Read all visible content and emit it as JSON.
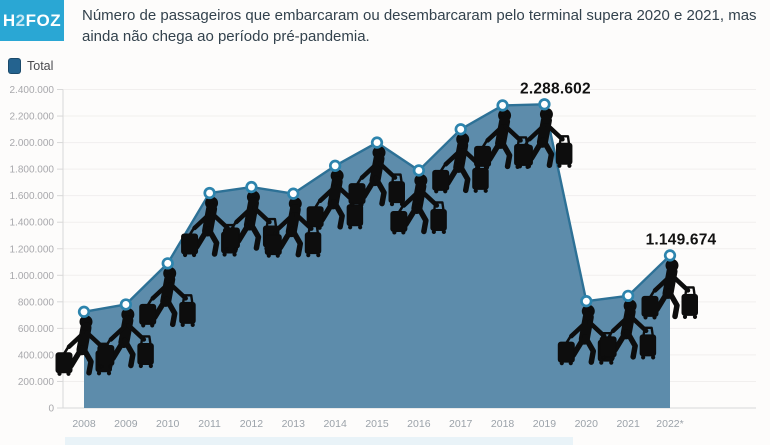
{
  "logo": {
    "part1": "H",
    "part2": "2",
    "part3": "FOZ",
    "bg_color": "#2aa7d4",
    "text_color": "#ffffff"
  },
  "header": {
    "title": "Número de passageiros que embarcaram ou desembarcaram pelo terminal supera 2020 e 2021, mas ainda não chega ao período pré-pandemia."
  },
  "legend": {
    "label": "Total",
    "color": "#24638f"
  },
  "chart_data": {
    "type": "area",
    "title": "Número de passageiros que embarcaram ou desembarcaram pelo terminal supera 2020 e 2021, mas ainda não chega ao período pré-pandemia.",
    "xlabel": "",
    "ylabel": "",
    "categories": [
      "2008",
      "2009",
      "2010",
      "2011",
      "2012",
      "2013",
      "2014",
      "2015",
      "2016",
      "2017",
      "2018",
      "2019",
      "2020",
      "2021",
      "2022*"
    ],
    "series": [
      {
        "name": "Total",
        "values": [
          725000,
          780000,
          1090000,
          1620000,
          1665000,
          1615000,
          1825000,
          2000000,
          1790000,
          2100000,
          2280000,
          2288602,
          805000,
          845000,
          1149674
        ]
      }
    ],
    "annotations": [
      {
        "category": "2019",
        "value": 2288602,
        "label": "2.288.602"
      },
      {
        "category": "2022*",
        "value": 1149674,
        "label": "1.149.674"
      }
    ],
    "ylim": [
      0,
      2400000
    ],
    "ytick_step": 200000,
    "ytick_labels": [
      "0",
      "200.000",
      "400.000",
      "600.000",
      "800.000",
      "1.000.000",
      "1.200.000",
      "1.400.000",
      "1.600.000",
      "1.800.000",
      "2.000.000",
      "2.200.000",
      "2.400.000"
    ],
    "grid": true,
    "legend_position": "top-left",
    "point_icon": "traveler-with-luggage-icon",
    "colors": {
      "area_fill": "#5d8cab",
      "line": "#2d7196",
      "marker_ring": "#2d84ad",
      "marker_fill": "#ffffff",
      "icon": "#0d0d0d",
      "grid": "#f1efee",
      "axis": "#d8d8d8",
      "ytick_text": "#a8a8ac",
      "xtick_text": "#9ba2a9",
      "annotation_text": "#121212",
      "bottom_strip": "#e9f3f8"
    }
  }
}
